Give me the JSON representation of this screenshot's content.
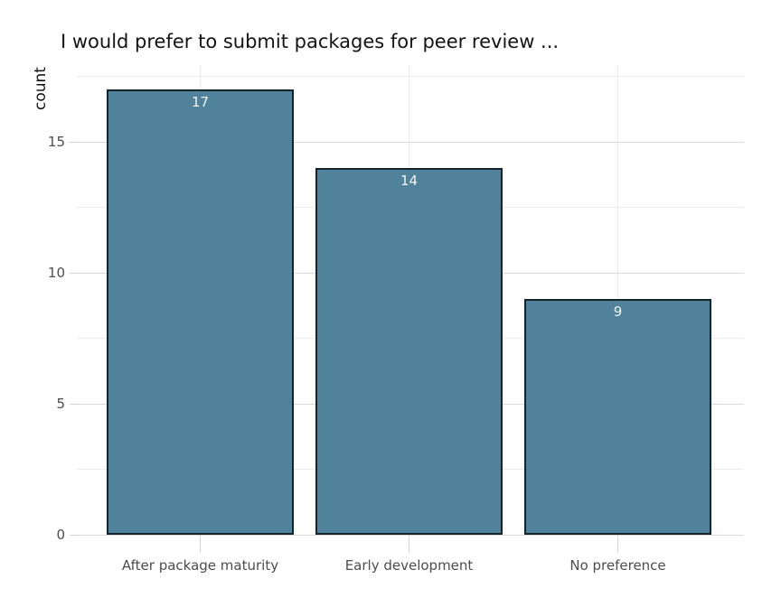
{
  "chart_data": {
    "type": "bar",
    "title": "I would prefer to submit packages for peer review ...",
    "xlabel": "",
    "ylabel": "count",
    "categories": [
      "After package maturity",
      "Early development",
      "No preference"
    ],
    "values": [
      17,
      14,
      9
    ],
    "bar_value_labels": [
      "17",
      "14",
      "9"
    ],
    "ylim": [
      0,
      17.9
    ],
    "yticks_major": [
      0,
      5,
      10,
      15
    ],
    "yticks_minor": [
      2.5,
      7.5,
      12.5,
      17.5
    ],
    "grid": "major and minor horizontal, vertical at category centers",
    "legend_position": "none",
    "colors": {
      "bar_fill": "#50829b",
      "bar_border": "#15232b",
      "grid_major": "#d9d9d9",
      "grid_minor": "#ececec",
      "axis_tick": "#d4d4d4",
      "tick_label": "#4d4d4d",
      "title_text": "#141414",
      "value_label": "#f2f2f2",
      "background": "#ffffff"
    }
  }
}
